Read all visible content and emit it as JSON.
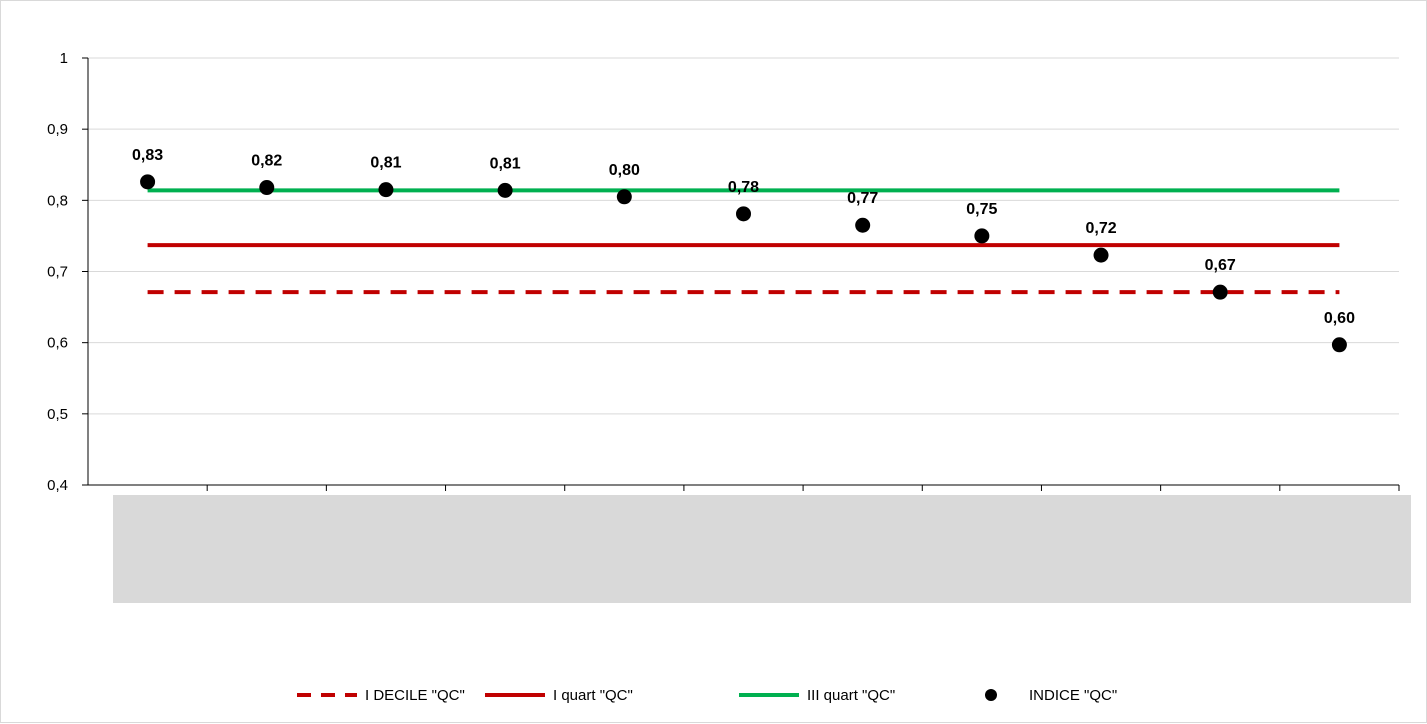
{
  "chart_data": {
    "type": "line",
    "title": "",
    "xlabel": "",
    "ylabel": "",
    "ylim": [
      0.4,
      1
    ],
    "y_ticks": [
      {
        "value": 0.4,
        "label": "0,4"
      },
      {
        "value": 0.5,
        "label": "0,5"
      },
      {
        "value": 0.6,
        "label": "0,6"
      },
      {
        "value": 0.7,
        "label": "0,7"
      },
      {
        "value": 0.8,
        "label": "0,8"
      },
      {
        "value": 0.9,
        "label": "0,9"
      },
      {
        "value": 1.0,
        "label": "1"
      }
    ],
    "categories": [
      "",
      "",
      "",
      "",
      "",
      "",
      "",
      "",
      "",
      "",
      ""
    ],
    "gridlines": true,
    "legend_position": "bottom",
    "category_box_color": "#d9d9d9",
    "series": [
      {
        "name": "I DECILE \"QC\"",
        "kind": "reference-line",
        "style": "dashed",
        "color": "#c00000",
        "values": [
          0.671,
          0.671,
          0.671,
          0.671,
          0.671,
          0.671,
          0.671,
          0.671,
          0.671,
          0.671,
          0.671
        ]
      },
      {
        "name": "I quart \"QC\"",
        "kind": "reference-line",
        "style": "solid",
        "color": "#c00000",
        "values": [
          0.737,
          0.737,
          0.737,
          0.737,
          0.737,
          0.737,
          0.737,
          0.737,
          0.737,
          0.737,
          0.737
        ]
      },
      {
        "name": "III quart \"QC\"",
        "kind": "reference-line",
        "style": "solid",
        "color": "#00b050",
        "values": [
          0.814,
          0.814,
          0.814,
          0.814,
          0.814,
          0.814,
          0.814,
          0.814,
          0.814,
          0.814,
          0.814
        ]
      },
      {
        "name": "INDICE \"QC\"",
        "kind": "points",
        "color": "#000000",
        "values": [
          0.826,
          0.818,
          0.815,
          0.814,
          0.805,
          0.781,
          0.765,
          0.75,
          0.723,
          0.671,
          0.597
        ],
        "labels": [
          "0,83",
          "0,82",
          "0,81",
          "0,81",
          "0,80",
          "0,78",
          "0,77",
          "0,75",
          "0,72",
          "0,67",
          "0,60"
        ]
      }
    ]
  }
}
